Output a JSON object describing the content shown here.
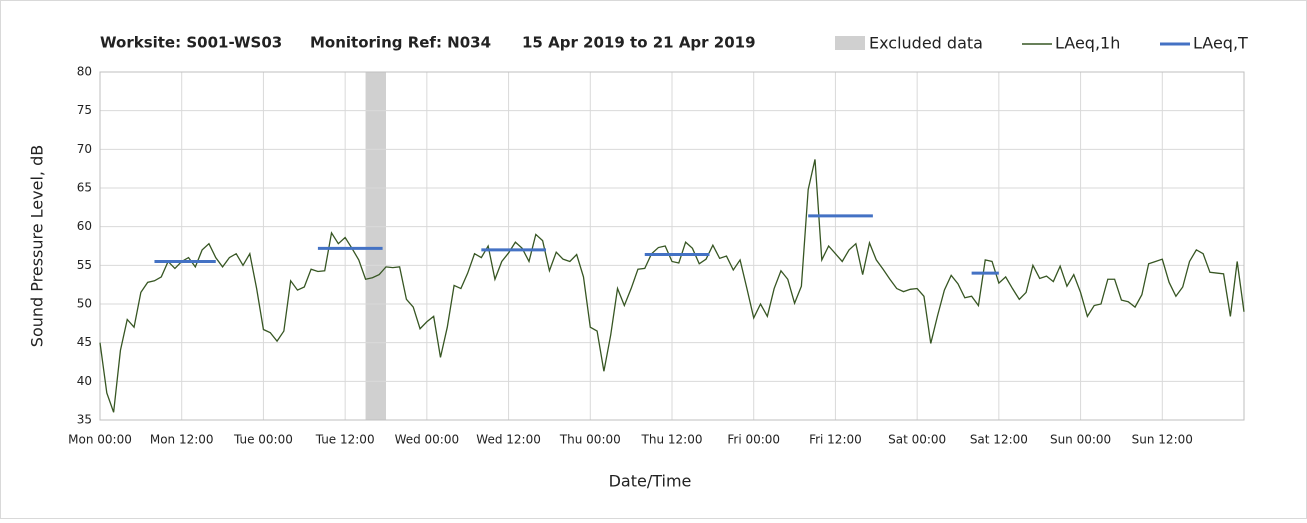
{
  "chart_data": {
    "type": "line",
    "title_parts": [
      "Worksite: S001-WS03",
      "Monitoring Ref: N034",
      "15 Apr 2019 to 21 Apr 2019"
    ],
    "x_label": "Date/Time",
    "y_label": "Sound Pressure Level, dB",
    "xlim": [
      0,
      168
    ],
    "xticks": [
      {
        "value": 0,
        "label": "Mon 00:00"
      },
      {
        "value": 12,
        "label": "Mon 12:00"
      },
      {
        "value": 24,
        "label": "Tue 00:00"
      },
      {
        "value": 36,
        "label": "Tue 12:00"
      },
      {
        "value": 48,
        "label": "Wed 00:00"
      },
      {
        "value": 60,
        "label": "Wed 12:00"
      },
      {
        "value": 72,
        "label": "Thu 00:00"
      },
      {
        "value": 84,
        "label": "Thu 12:00"
      },
      {
        "value": 96,
        "label": "Fri 00:00"
      },
      {
        "value": 108,
        "label": "Fri 12:00"
      },
      {
        "value": 120,
        "label": "Sat 00:00"
      },
      {
        "value": 132,
        "label": "Sat 12:00"
      },
      {
        "value": 144,
        "label": "Sun 00:00"
      },
      {
        "value": 156,
        "label": "Sun 12:00"
      }
    ],
    "ylim": [
      35,
      80
    ],
    "yticks": [
      35,
      40,
      45,
      50,
      55,
      60,
      65,
      70,
      75,
      80
    ],
    "grid": true,
    "excluded": {
      "name": "Excluded data",
      "color": "#d0d0d0",
      "x": [
        39,
        42
      ]
    },
    "series": [
      {
        "name": "LAeq,1h",
        "color": "#375623",
        "x": [
          0,
          1,
          2,
          3,
          4,
          5,
          6,
          7,
          8,
          9,
          10,
          11,
          12,
          13,
          14,
          15,
          16,
          17,
          18,
          19,
          20,
          21,
          22,
          23,
          24,
          25,
          26,
          27,
          28,
          29,
          30,
          31,
          32,
          33,
          34,
          35,
          36,
          37,
          38,
          39,
          40,
          41,
          42,
          43,
          44,
          45,
          46,
          47,
          48,
          49,
          50,
          51,
          52,
          53,
          54,
          55,
          56,
          57,
          58,
          59,
          60,
          61,
          62,
          63,
          64,
          65,
          66,
          67,
          68,
          69,
          70,
          71,
          72,
          73,
          74,
          75,
          76,
          77,
          78,
          79,
          80,
          81,
          82,
          83,
          84,
          85,
          86,
          87,
          88,
          89,
          90,
          91,
          92,
          93,
          94,
          95,
          96,
          97,
          98,
          99,
          100,
          101,
          102,
          103,
          104,
          105,
          106,
          107,
          108,
          109,
          110,
          111,
          112,
          113,
          114,
          115,
          116,
          117,
          118,
          119,
          120,
          121,
          122,
          123,
          124,
          125,
          126,
          127,
          128,
          129,
          130,
          131,
          132,
          133,
          134,
          135,
          136,
          137,
          138,
          139,
          140,
          141,
          142,
          143,
          144,
          145,
          146,
          147,
          148,
          149,
          150,
          151,
          152,
          153,
          154,
          155,
          156,
          157,
          158,
          159,
          160,
          161,
          162,
          163,
          164,
          165,
          166,
          167,
          168
        ],
        "values": [
          45,
          38.5,
          36,
          44,
          48,
          47,
          51.5,
          52.8,
          53,
          53.5,
          55.5,
          54.6,
          55.5,
          56,
          54.8,
          57,
          57.8,
          56,
          54.8,
          56,
          56.5,
          55,
          56.5,
          52,
          46.7,
          46.3,
          45.2,
          46.5,
          53,
          51.8,
          52.2,
          54.5,
          54.2,
          54.3,
          59.2,
          57.8,
          58.6,
          57.2,
          55.7,
          53.2,
          53.4,
          53.8,
          54.8,
          54.7,
          54.8,
          50.6,
          49.6,
          46.8,
          47.7,
          48.4,
          43.1,
          47,
          52.4,
          52,
          54,
          56.5,
          56,
          57.5,
          53.2,
          55.5,
          56.6,
          58,
          57.2,
          55.5,
          59,
          58.2,
          54.3,
          56.7,
          55.8,
          55.5,
          56.4,
          53.5,
          47,
          46.5,
          41.3,
          46,
          52,
          49.8,
          52,
          54.5,
          54.6,
          56.5,
          57.3,
          57.5,
          55.5,
          55.3,
          58,
          57.2,
          55.2,
          55.8,
          57.6,
          55.9,
          56.2,
          54.4,
          55.7,
          52,
          48.2,
          50,
          48.4,
          52,
          54.3,
          53.2,
          50.1,
          52.3,
          64.8,
          68.7,
          55.7,
          57.5,
          56.5,
          55.5,
          57,
          57.8,
          53.8,
          57.9,
          55.7,
          54.5,
          53.2,
          52,
          51.6,
          51.9,
          52,
          51,
          44.9,
          48.5,
          51.8,
          53.7,
          52.6,
          50.8,
          51,
          49.8,
          55.7,
          55.5,
          52.7,
          53.5,
          52,
          50.6,
          51.5,
          55,
          53.3,
          53.6,
          52.9,
          54.9,
          52.3,
          53.8,
          51.5,
          48.4,
          49.8,
          50,
          53.2,
          53.2,
          50.5,
          50.3,
          49.6,
          51.2,
          55.2,
          55.5,
          55.8,
          52.8,
          51,
          52.2,
          55.5,
          57,
          56.5,
          54.1,
          54,
          53.9,
          48.4,
          55.5,
          49
        ]
      }
    ],
    "periods": {
      "name": "LAeq,T",
      "color": "#4472c4",
      "segments": [
        {
          "x": [
            8,
            17
          ],
          "value": 55.5
        },
        {
          "x": [
            32,
            41.5
          ],
          "value": 57.2
        },
        {
          "x": [
            56,
            65.5
          ],
          "value": 57
        },
        {
          "x": [
            80,
            89.5
          ],
          "value": 56.4
        },
        {
          "x": [
            104,
            113.5
          ],
          "value": 61.4
        },
        {
          "x": [
            128,
            132
          ],
          "value": 54
        }
      ]
    }
  }
}
